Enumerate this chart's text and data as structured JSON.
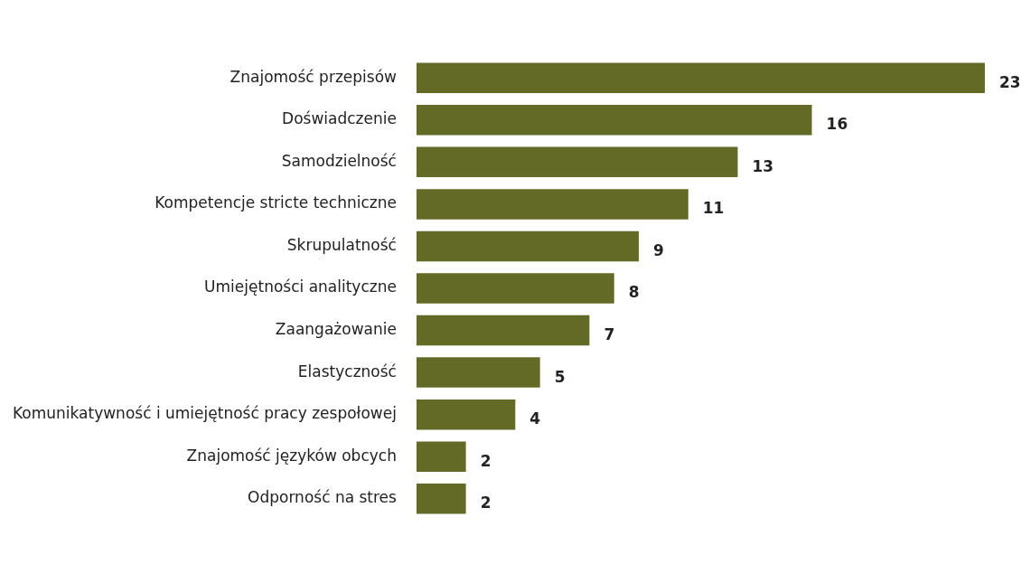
{
  "chart_data": {
    "type": "bar",
    "orientation": "horizontal",
    "categories": [
      "Znajomość przepisów",
      "Doświadczenie",
      "Samodzielność",
      "Kompetencje stricte techniczne",
      "Skrupulatność",
      "Umiejętności analityczne",
      "Zaangażowanie",
      "Elastyczność",
      "Komunikatywność i umiejętność pracy zespołowej",
      "Znajomość języków obcych",
      "Odporność na stres"
    ],
    "values": [
      23,
      16,
      13,
      11,
      9,
      8,
      7,
      5,
      4,
      2,
      2
    ],
    "color": "#636a26",
    "data_labels": true
  }
}
